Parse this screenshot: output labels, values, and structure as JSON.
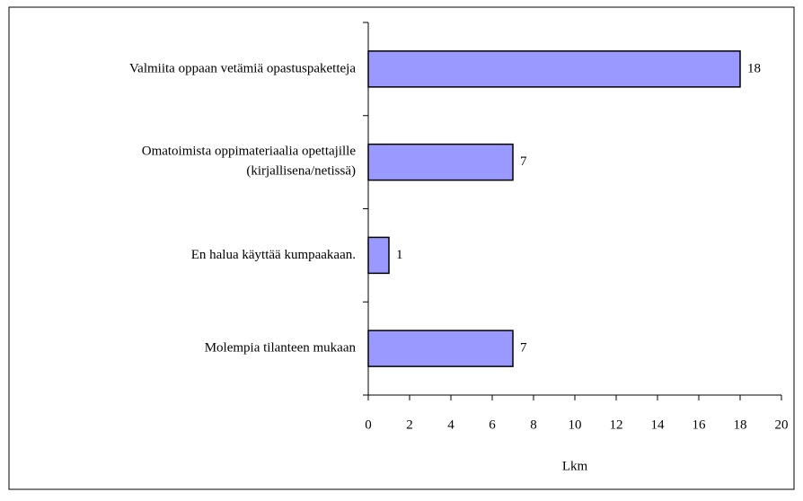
{
  "chart_data": {
    "type": "bar",
    "orientation": "horizontal",
    "categories": [
      "Valmiita oppaan vetämiä opastuspaketteja",
      "Omatoimista oppimateriaalia opettajille\n(kirjallisena/netissä)",
      "En halua käyttää kumpaakaan.",
      "Molempia tilanteen mukaan"
    ],
    "values": [
      18,
      7,
      1,
      7
    ],
    "color": "#9999ff",
    "xlabel": "Lkm",
    "xlim": [
      0,
      20
    ],
    "xticks": [
      0,
      2,
      4,
      6,
      8,
      10,
      12,
      14,
      16,
      18,
      20
    ]
  }
}
